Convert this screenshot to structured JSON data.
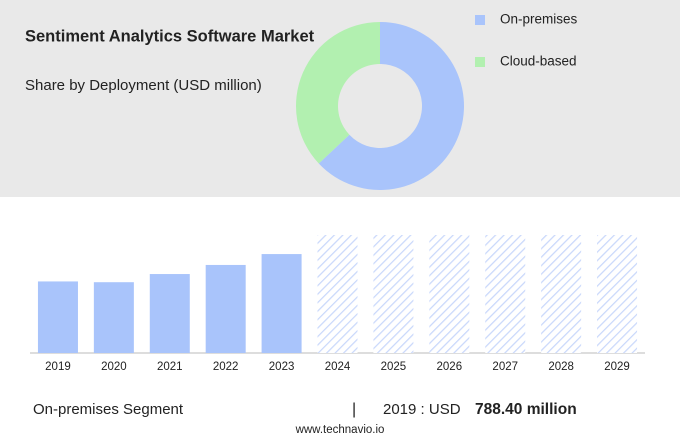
{
  "chart_data": [
    {
      "type": "pie",
      "title": "Sentiment Analytics Software Market",
      "subtitle": "Share by Deployment (USD million)",
      "categories": [
        "On-premises",
        "Cloud-based"
      ],
      "values": [
        63,
        37
      ],
      "colors": [
        "#a9c4fb",
        "#b2f0b0"
      ],
      "donut": true
    },
    {
      "type": "bar",
      "categories": [
        "2019",
        "2020",
        "2021",
        "2022",
        "2023",
        "2024",
        "2025",
        "2026",
        "2027",
        "2028",
        "2029"
      ],
      "values": [
        788.4,
        780,
        870,
        970,
        1090,
        null,
        null,
        null,
        null,
        null,
        null
      ],
      "color": "#a9c4fb",
      "ylim": [
        0,
        1300
      ]
    }
  ],
  "footer": {
    "segment": "On-premises Segment",
    "separator": "|",
    "year_label": "2019 : USD",
    "value_label": "788.40 million",
    "source": "www.technavio.io"
  }
}
